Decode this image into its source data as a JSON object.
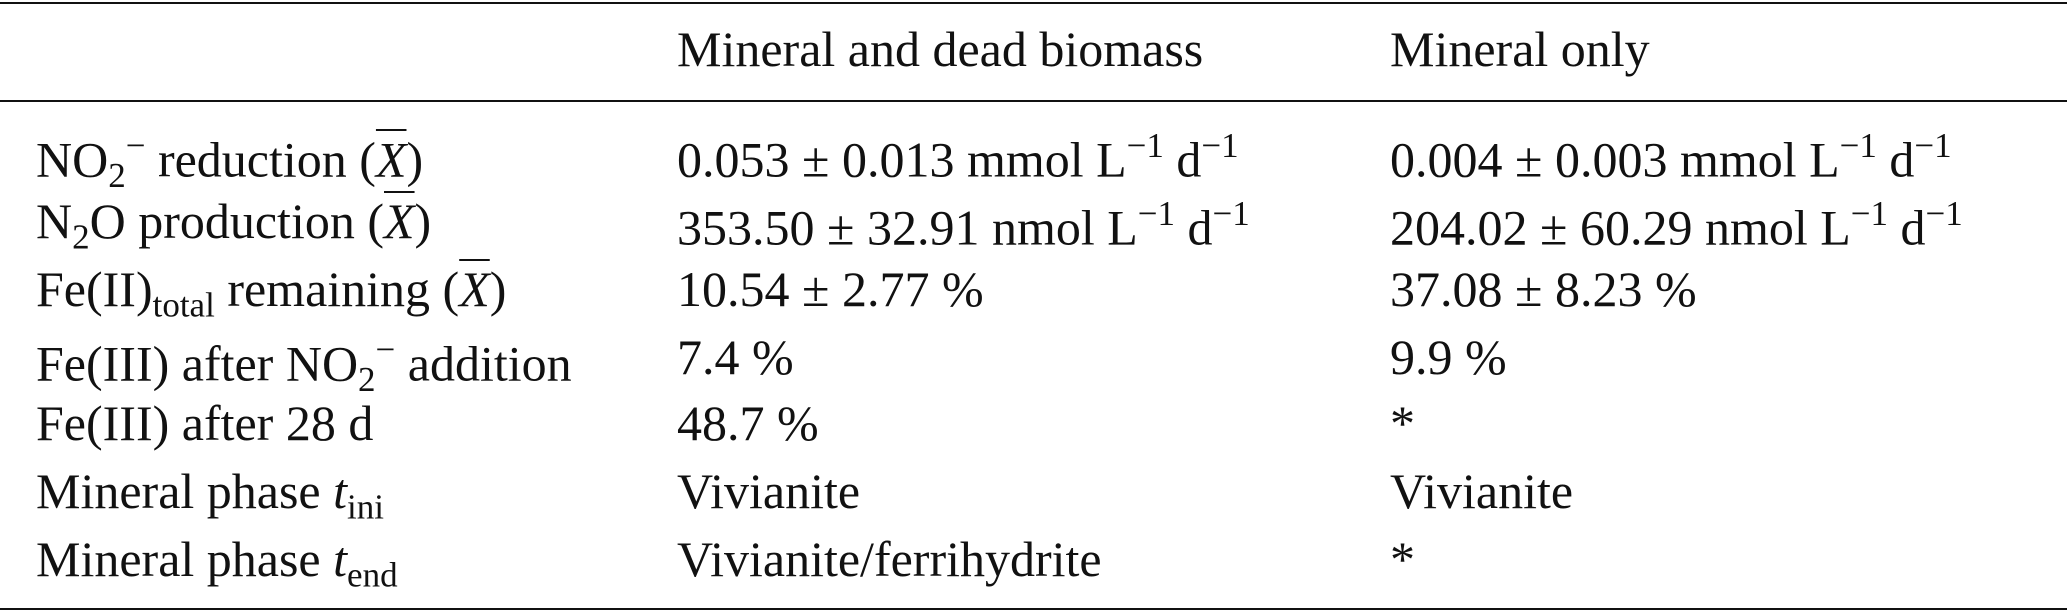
{
  "table": {
    "header": [
      "Mineral and dead biomass",
      "Mineral only"
    ],
    "rows": [
      [
        [
          {
            "t": "NO"
          },
          {
            "t": "2",
            "s": "sub"
          },
          {
            "t": "−",
            "s": "sup"
          },
          {
            "t": " reduction ("
          },
          {
            "t": "X",
            "s": "bar"
          },
          {
            "t": ")"
          }
        ],
        [
          {
            "t": "0.053 ± 0.013 mmol L"
          },
          {
            "t": "−1",
            "s": "sup"
          },
          {
            "t": " d"
          },
          {
            "t": "−1",
            "s": "sup"
          }
        ],
        [
          {
            "t": "0.004 ± 0.003 mmol L"
          },
          {
            "t": "−1",
            "s": "sup"
          },
          {
            "t": " d"
          },
          {
            "t": "−1",
            "s": "sup"
          }
        ]
      ],
      [
        [
          {
            "t": "N"
          },
          {
            "t": "2",
            "s": "sub"
          },
          {
            "t": "O production ("
          },
          {
            "t": "X",
            "s": "bar"
          },
          {
            "t": ")"
          }
        ],
        [
          {
            "t": "353.50 ± 32.91 nmol L"
          },
          {
            "t": "−1",
            "s": "sup"
          },
          {
            "t": " d"
          },
          {
            "t": "−1",
            "s": "sup"
          }
        ],
        [
          {
            "t": "204.02 ± 60.29 nmol L"
          },
          {
            "t": "−1",
            "s": "sup"
          },
          {
            "t": " d"
          },
          {
            "t": "−1",
            "s": "sup"
          }
        ]
      ],
      [
        [
          {
            "t": "Fe(II)"
          },
          {
            "t": "total",
            "s": "sub"
          },
          {
            "t": " remaining ("
          },
          {
            "t": "X",
            "s": "bar"
          },
          {
            "t": ")"
          }
        ],
        [
          {
            "t": "10.54 ± 2.77 %"
          }
        ],
        [
          {
            "t": "37.08 ± 8.23 %"
          }
        ]
      ],
      [
        [
          {
            "t": "Fe(III) after NO"
          },
          {
            "t": "2",
            "s": "sub"
          },
          {
            "t": "−",
            "s": "sup"
          },
          {
            "t": " addition"
          }
        ],
        [
          {
            "t": "7.4 %"
          }
        ],
        [
          {
            "t": "9.9 %"
          }
        ]
      ],
      [
        [
          {
            "t": "Fe(III) after 28 d"
          }
        ],
        [
          {
            "t": "48.7 %"
          }
        ],
        [
          {
            "t": "*"
          }
        ]
      ],
      [
        [
          {
            "t": "Mineral phase "
          },
          {
            "t": "t",
            "s": "italic"
          },
          {
            "t": "ini",
            "s": "sub"
          }
        ],
        [
          {
            "t": "Vivianite"
          }
        ],
        [
          {
            "t": "Vivianite"
          }
        ]
      ],
      [
        [
          {
            "t": "Mineral phase "
          },
          {
            "t": "t",
            "s": "italic"
          },
          {
            "t": "end",
            "s": "sub"
          }
        ],
        [
          {
            "t": "Vivianite/ferrihydrite"
          }
        ],
        [
          {
            "t": "*"
          }
        ]
      ]
    ]
  }
}
